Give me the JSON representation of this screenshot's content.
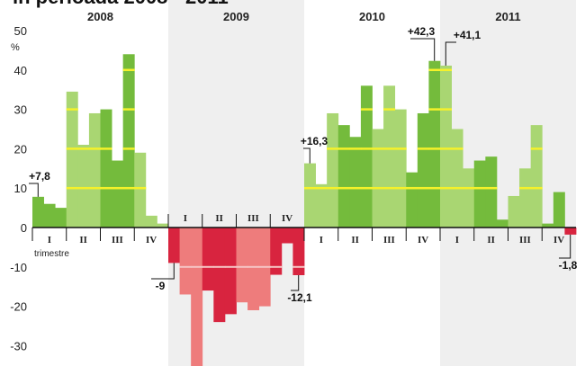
{
  "title": "în perioada 2008 - 2011",
  "chart_data": {
    "type": "bar",
    "ylabel": "%",
    "ylim": [
      -35,
      50
    ],
    "yticks": [
      50,
      40,
      30,
      20,
      10,
      0,
      -10,
      -20,
      -30
    ],
    "years": [
      "2008",
      "2009",
      "2010",
      "2011"
    ],
    "quarter_labels": [
      "I",
      "II",
      "III",
      "IV"
    ],
    "xlabel_note": "trimestre",
    "colors": {
      "light_green": "#a9d672",
      "dark_green": "#74bb3c",
      "light_red": "#ee7c7c",
      "dark_red": "#d8243f",
      "highlight_line": "#f5f12a",
      "band": "#efefef"
    },
    "months": [
      {
        "value": 7.8,
        "shade": "dark_green"
      },
      {
        "value": 6,
        "shade": "dark_green"
      },
      {
        "value": 5,
        "shade": "dark_green"
      },
      {
        "value": 34.5,
        "shade": "light_green"
      },
      {
        "value": 21,
        "shade": "light_green"
      },
      {
        "value": 29,
        "shade": "light_green"
      },
      {
        "value": 30,
        "shade": "dark_green"
      },
      {
        "value": 17,
        "shade": "dark_green"
      },
      {
        "value": 44,
        "shade": "dark_green"
      },
      {
        "value": 19,
        "shade": "light_green"
      },
      {
        "value": 3,
        "shade": "light_green"
      },
      {
        "value": 1,
        "shade": "light_green"
      },
      {
        "value": -9,
        "shade": "dark_red"
      },
      {
        "value": -17,
        "shade": "light_red"
      },
      {
        "value": -36,
        "shade": "light_red"
      },
      {
        "value": -16,
        "shade": "dark_red"
      },
      {
        "value": -24,
        "shade": "dark_red"
      },
      {
        "value": -22,
        "shade": "dark_red"
      },
      {
        "value": -19,
        "shade": "light_red"
      },
      {
        "value": -21,
        "shade": "light_red"
      },
      {
        "value": -20,
        "shade": "light_red"
      },
      {
        "value": -12,
        "shade": "dark_red"
      },
      {
        "value": -4,
        "shade": "dark_red"
      },
      {
        "value": -12.1,
        "shade": "dark_red"
      },
      {
        "value": 16.3,
        "shade": "light_green"
      },
      {
        "value": 11,
        "shade": "light_green"
      },
      {
        "value": 29,
        "shade": "light_green"
      },
      {
        "value": 26,
        "shade": "dark_green"
      },
      {
        "value": 23,
        "shade": "dark_green"
      },
      {
        "value": 36,
        "shade": "dark_green"
      },
      {
        "value": 25,
        "shade": "light_green"
      },
      {
        "value": 36,
        "shade": "light_green"
      },
      {
        "value": 30,
        "shade": "light_green"
      },
      {
        "value": 14,
        "shade": "dark_green"
      },
      {
        "value": 29,
        "shade": "dark_green"
      },
      {
        "value": 42.3,
        "shade": "dark_green"
      },
      {
        "value": 41.1,
        "shade": "light_green"
      },
      {
        "value": 25,
        "shade": "light_green"
      },
      {
        "value": 15,
        "shade": "light_green"
      },
      {
        "value": 17,
        "shade": "dark_green"
      },
      {
        "value": 18,
        "shade": "dark_green"
      },
      {
        "value": 2,
        "shade": "dark_green"
      },
      {
        "value": 8,
        "shade": "light_green"
      },
      {
        "value": 15,
        "shade": "light_green"
      },
      {
        "value": 26,
        "shade": "light_green"
      },
      {
        "value": 1,
        "shade": "dark_green"
      },
      {
        "value": 9,
        "shade": "dark_green"
      },
      {
        "value": -1.8,
        "shade": "dark_red"
      }
    ],
    "annotations": [
      {
        "month_index": 0,
        "text": "+7,8",
        "position": "above"
      },
      {
        "month_index": 12,
        "text": "-9",
        "position": "below"
      },
      {
        "month_index": 23,
        "text": "-12,1",
        "position": "below"
      },
      {
        "month_index": 24,
        "text": "+16,3",
        "position": "above"
      },
      {
        "month_index": 35,
        "text": "+42,3",
        "position": "above"
      },
      {
        "month_index": 36,
        "text": "+41,1",
        "position": "above"
      },
      {
        "month_index": 47,
        "text": "-1,8",
        "position": "below"
      }
    ]
  }
}
